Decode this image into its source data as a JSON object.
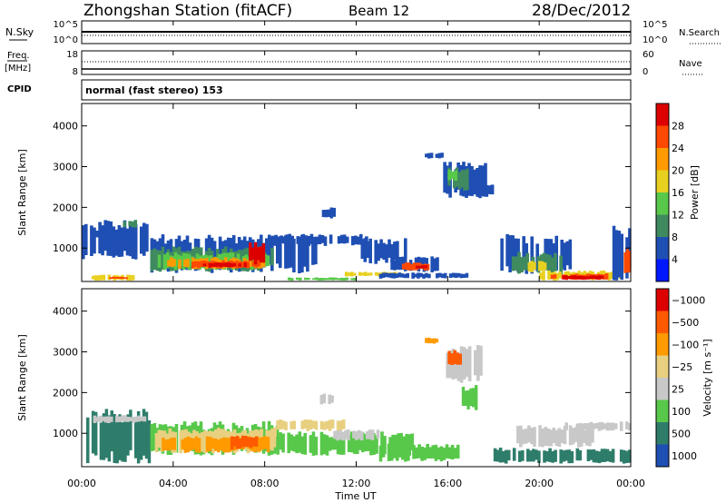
{
  "header": {
    "title": "Zhongshan Station (fitACF)",
    "beam": "Beam 12",
    "date": "28/Dec/2012"
  },
  "noise_panel": {
    "left_label": "N.Sky",
    "right_label": "N.Search",
    "left_ticks": [
      "10^5",
      "10^0"
    ],
    "right_ticks": [
      "10^5",
      "10^0"
    ]
  },
  "freq_panel": {
    "left_label_line1": "Freq.",
    "left_label_line2": "[MHz]",
    "right_label": "Nave",
    "left_ticks": [
      "18",
      "8"
    ],
    "right_ticks": [
      "60",
      "0"
    ]
  },
  "cpid": {
    "label": "CPID",
    "value": "normal (fast stereo) 153"
  },
  "chart_data": [
    {
      "type": "heatmap",
      "name": "power",
      "ylabel": "Slant Range [km]",
      "yticks": [
        1000,
        2000,
        3000,
        4000
      ],
      "ylim": [
        180,
        4550
      ],
      "colorbar": {
        "label": "Power [dB]",
        "ticks": [
          "4",
          "8",
          "12",
          "16",
          "20",
          "24",
          "28"
        ],
        "colors": [
          "#0018ff",
          "#1f4fb3",
          "#3f8a5f",
          "#58c84a",
          "#e8d020",
          "#ff9a00",
          "#ff4800",
          "#dd0000"
        ]
      },
      "regions": [
        {
          "t": [
            0.0,
            2.9
          ],
          "r": [
            700,
            1700
          ],
          "c": 1
        },
        {
          "t": [
            0.6,
            2.2
          ],
          "r": [
            1250,
            1450
          ],
          "c": 1
        },
        {
          "t": [
            1.8,
            2.4
          ],
          "r": [
            1500,
            1700
          ],
          "c": 2
        },
        {
          "t": [
            0.2,
            2.3
          ],
          "r": [
            200,
            350
          ],
          "c": 4
        },
        {
          "t": [
            1.2,
            2.0
          ],
          "r": [
            230,
            300
          ],
          "c": 6
        },
        {
          "t": [
            3.0,
            10.4
          ],
          "r": [
            380,
            1350
          ],
          "c": 1
        },
        {
          "t": [
            3.0,
            8.5
          ],
          "r": [
            420,
            1050
          ],
          "c": 2
        },
        {
          "t": [
            3.2,
            8.2
          ],
          "r": [
            450,
            900
          ],
          "c": 3
        },
        {
          "t": [
            3.5,
            8.0
          ],
          "r": [
            480,
            780
          ],
          "c": 5
        },
        {
          "t": [
            4.8,
            7.8
          ],
          "r": [
            500,
            700
          ],
          "c": 6
        },
        {
          "t": [
            5.3,
            7.2
          ],
          "r": [
            520,
            650
          ],
          "c": 7
        },
        {
          "t": [
            7.3,
            8.0
          ],
          "r": [
            580,
            1150
          ],
          "c": 7
        },
        {
          "t": [
            8.3,
            12.5
          ],
          "r": [
            1050,
            1350
          ],
          "c": 1
        },
        {
          "t": [
            9.0,
            12.0
          ],
          "r": [
            200,
            280
          ],
          "c": 3
        },
        {
          "t": [
            12.2,
            14.2
          ],
          "r": [
            600,
            1250
          ],
          "c": 1
        },
        {
          "t": [
            11.5,
            14.0
          ],
          "r": [
            300,
            420
          ],
          "c": 4
        },
        {
          "t": [
            13.5,
            15.6
          ],
          "r": [
            400,
            800
          ],
          "c": 1
        },
        {
          "t": [
            14.0,
            15.3
          ],
          "r": [
            450,
            650
          ],
          "c": 6
        },
        {
          "t": [
            14.6,
            15.1
          ],
          "r": [
            500,
            580
          ],
          "c": 7
        },
        {
          "t": [
            13.0,
            17.0
          ],
          "r": [
            250,
            400
          ],
          "c": 1
        },
        {
          "t": [
            15.8,
            17.7
          ],
          "r": [
            2200,
            3150
          ],
          "c": 1
        },
        {
          "t": [
            16.0,
            16.9
          ],
          "r": [
            2400,
            3000
          ],
          "c": 2
        },
        {
          "t": [
            16.0,
            16.4
          ],
          "r": [
            2650,
            2950
          ],
          "c": 3
        },
        {
          "t": [
            17.0,
            18.0
          ],
          "r": [
            2250,
            2600
          ],
          "c": 1
        },
        {
          "t": [
            18.3,
            21.4
          ],
          "r": [
            350,
            1350
          ],
          "c": 1
        },
        {
          "t": [
            18.8,
            21.0
          ],
          "r": [
            350,
            900
          ],
          "c": 2
        },
        {
          "t": [
            19.5,
            20.3
          ],
          "r": [
            400,
            700
          ],
          "c": 4
        },
        {
          "t": [
            20.0,
            23.6
          ],
          "r": [
            200,
            450
          ],
          "c": 4
        },
        {
          "t": [
            20.5,
            23.0
          ],
          "r": [
            220,
            380
          ],
          "c": 6
        },
        {
          "t": [
            21.0,
            22.8
          ],
          "r": [
            220,
            330
          ],
          "c": 7
        },
        {
          "t": [
            23.2,
            24.0
          ],
          "r": [
            200,
            1600
          ],
          "c": 1
        },
        {
          "t": [
            23.7,
            24.0
          ],
          "r": [
            300,
            1000
          ],
          "c": 6
        },
        {
          "t": [
            10.5,
            11.2
          ],
          "r": [
            1700,
            2000
          ],
          "c": 1
        },
        {
          "t": [
            15.0,
            15.8
          ],
          "r": [
            3200,
            3350
          ],
          "c": 1
        }
      ]
    },
    {
      "type": "heatmap",
      "name": "velocity",
      "ylabel": "Slant Range [km]",
      "yticks": [
        1000,
        2000,
        3000,
        4000
      ],
      "ylim": [
        180,
        4550
      ],
      "colorbar": {
        "label": "Velocity [m s⁻¹]",
        "ticks": [
          "1000",
          "500",
          "100",
          "25",
          "−25",
          "−100",
          "−500",
          "−1000"
        ],
        "colors": [
          "#1f4fb3",
          "#2e7d6b",
          "#58c84a",
          "#c8c8c8",
          "#e8d080",
          "#ff9a00",
          "#ff5a00",
          "#dd0000"
        ]
      },
      "regions": [
        {
          "t": [
            0.2,
            3.0
          ],
          "r": [
            250,
            1600
          ],
          "c": 1
        },
        {
          "t": [
            0.5,
            2.8
          ],
          "r": [
            1250,
            1450
          ],
          "c": 3
        },
        {
          "t": [
            3.0,
            8.6
          ],
          "r": [
            450,
            1300
          ],
          "c": 2
        },
        {
          "t": [
            3.2,
            8.5
          ],
          "r": [
            500,
            1150
          ],
          "c": 4
        },
        {
          "t": [
            3.5,
            8.2
          ],
          "r": [
            520,
            950
          ],
          "c": 5
        },
        {
          "t": [
            6.5,
            7.8
          ],
          "r": [
            600,
            950
          ],
          "c": 6
        },
        {
          "t": [
            8.5,
            11.5
          ],
          "r": [
            1050,
            1350
          ],
          "c": 4
        },
        {
          "t": [
            8.5,
            14.5
          ],
          "r": [
            450,
            1050
          ],
          "c": 2
        },
        {
          "t": [
            11.0,
            13.0
          ],
          "r": [
            800,
            1100
          ],
          "c": 3
        },
        {
          "t": [
            13.0,
            16.5
          ],
          "r": [
            300,
            750
          ],
          "c": 2
        },
        {
          "t": [
            15.8,
            17.5
          ],
          "r": [
            2200,
            3200
          ],
          "c": 3
        },
        {
          "t": [
            16.0,
            16.6
          ],
          "r": [
            2600,
            3050
          ],
          "c": 6
        },
        {
          "t": [
            16.5,
            17.4
          ],
          "r": [
            1500,
            2200
          ],
          "c": 2
        },
        {
          "t": [
            18.0,
            24.0
          ],
          "r": [
            250,
            650
          ],
          "c": 1
        },
        {
          "t": [
            19.0,
            22.5
          ],
          "r": [
            650,
            1200
          ],
          "c": 3
        },
        {
          "t": [
            21.0,
            24.0
          ],
          "r": [
            1050,
            1300
          ],
          "c": 3
        },
        {
          "t": [
            15.0,
            15.8
          ],
          "r": [
            3200,
            3350
          ],
          "c": 5
        },
        {
          "t": [
            10.3,
            11.0
          ],
          "r": [
            1700,
            2000
          ],
          "c": 3
        }
      ]
    }
  ],
  "x_axis": {
    "label": "Time UT",
    "ticks": [
      "00:00",
      "04:00",
      "08:00",
      "12:00",
      "16:00",
      "20:00",
      "00:00"
    ],
    "range_hours": [
      0,
      24
    ]
  }
}
